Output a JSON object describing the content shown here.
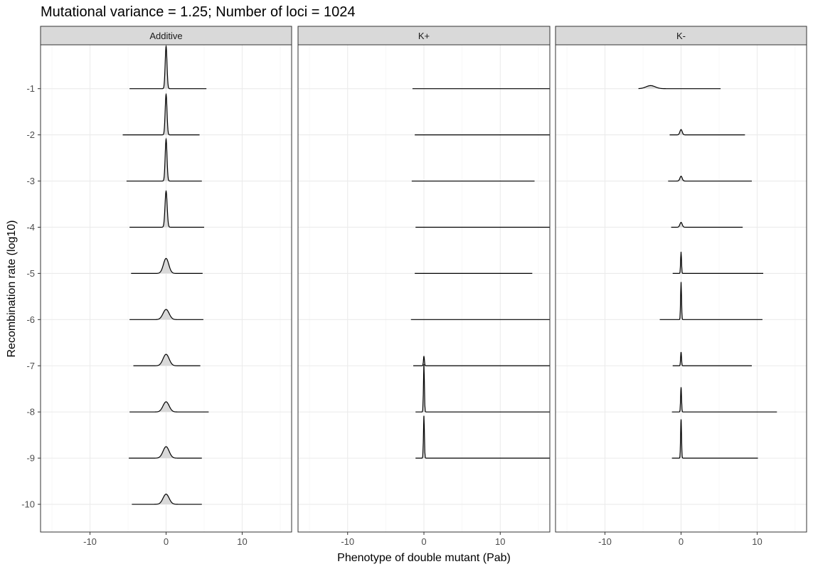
{
  "chart_data": {
    "type": "ridgeline",
    "title": "Mutational variance = 1.25; Number of loci = 1024",
    "xlabel": "Phenotype of double mutant (Pab)",
    "ylabel": "Recombination rate (log10)",
    "xlim": [
      -16.5,
      16.5
    ],
    "xticks": [
      -10,
      0,
      10
    ],
    "ylim": [
      -10.6,
      -0.05
    ],
    "yticks": [
      -1,
      -2,
      -3,
      -4,
      -5,
      -6,
      -7,
      -8,
      -9,
      -10
    ],
    "grid": true,
    "facets": [
      {
        "label": "Additive",
        "ridges": [
          {
            "y": -1,
            "xmin": -4.8,
            "xmax": 5.3,
            "peak": 0.0,
            "height": 0.96,
            "width": 0.12
          },
          {
            "y": -2,
            "xmin": -5.7,
            "xmax": 4.4,
            "peak": 0.0,
            "height": 0.92,
            "width": 0.12
          },
          {
            "y": -3,
            "xmin": -5.2,
            "xmax": 4.7,
            "peak": 0.0,
            "height": 0.95,
            "width": 0.12
          },
          {
            "y": -4,
            "xmin": -4.8,
            "xmax": 5.0,
            "peak": 0.0,
            "height": 0.82,
            "width": 0.14
          },
          {
            "y": -5,
            "xmin": -4.6,
            "xmax": 4.8,
            "peak": 0.0,
            "height": 0.34,
            "width": 0.35
          },
          {
            "y": -6,
            "xmin": -4.8,
            "xmax": 4.9,
            "peak": 0.0,
            "height": 0.23,
            "width": 0.4
          },
          {
            "y": -7,
            "xmin": -4.3,
            "xmax": 4.5,
            "peak": 0.0,
            "height": 0.26,
            "width": 0.4
          },
          {
            "y": -8,
            "xmin": -4.8,
            "xmax": 5.6,
            "peak": 0.0,
            "height": 0.23,
            "width": 0.4
          },
          {
            "y": -9,
            "xmin": -4.9,
            "xmax": 4.7,
            "peak": 0.0,
            "height": 0.26,
            "width": 0.4
          },
          {
            "y": -10,
            "xmin": -4.5,
            "xmax": 4.7,
            "peak": 0.0,
            "height": 0.23,
            "width": 0.4
          }
        ]
      },
      {
        "label": "K+",
        "ridges": [
          {
            "y": -1,
            "xmin": -1.5,
            "xmax": 16.5,
            "peak": 0.0,
            "height": 0.0,
            "width": 0.1
          },
          {
            "y": -2,
            "xmin": -1.2,
            "xmax": 16.5,
            "peak": 0.0,
            "height": 0.0,
            "width": 0.1
          },
          {
            "y": -3,
            "xmin": -1.6,
            "xmax": 14.5,
            "peak": 0.0,
            "height": 0.0,
            "width": 0.1
          },
          {
            "y": -4,
            "xmin": -1.1,
            "xmax": 16.5,
            "peak": 0.0,
            "height": 0.0,
            "width": 0.1
          },
          {
            "y": -5,
            "xmin": -1.2,
            "xmax": 14.2,
            "peak": 0.0,
            "height": 0.0,
            "width": 0.1
          },
          {
            "y": -6,
            "xmin": -1.7,
            "xmax": 16.5,
            "peak": 0.0,
            "height": 0.0,
            "width": 0.1
          },
          {
            "y": -7,
            "xmin": -1.4,
            "xmax": 16.5,
            "peak": 0.0,
            "height": 0.22,
            "width": 0.06
          },
          {
            "y": -8,
            "xmin": -1.1,
            "xmax": 16.5,
            "peak": 0.0,
            "height": 1.08,
            "width": 0.06
          },
          {
            "y": -9,
            "xmin": -1.1,
            "xmax": 16.5,
            "peak": 0.0,
            "height": 0.96,
            "width": 0.06
          }
        ]
      },
      {
        "label": "K-",
        "ridges": [
          {
            "y": -1,
            "xmin": -5.6,
            "xmax": 5.2,
            "peak": -4.0,
            "height": 0.07,
            "width": 0.6
          },
          {
            "y": -2,
            "xmin": -1.5,
            "xmax": 8.4,
            "peak": 0.0,
            "height": 0.12,
            "width": 0.15
          },
          {
            "y": -3,
            "xmin": -1.7,
            "xmax": 9.3,
            "peak": 0.0,
            "height": 0.11,
            "width": 0.15
          },
          {
            "y": -4,
            "xmin": -1.3,
            "xmax": 8.1,
            "peak": 0.0,
            "height": 0.11,
            "width": 0.15
          },
          {
            "y": -5,
            "xmin": -1.1,
            "xmax": 10.8,
            "peak": 0.0,
            "height": 0.48,
            "width": 0.06
          },
          {
            "y": -6,
            "xmin": -2.8,
            "xmax": 10.7,
            "peak": 0.0,
            "height": 0.85,
            "width": 0.06
          },
          {
            "y": -7,
            "xmin": -1.1,
            "xmax": 9.3,
            "peak": 0.0,
            "height": 0.31,
            "width": 0.06
          },
          {
            "y": -8,
            "xmin": -1.2,
            "xmax": 12.6,
            "peak": 0.0,
            "height": 0.56,
            "width": 0.06
          },
          {
            "y": -9,
            "xmin": -1.2,
            "xmax": 10.1,
            "peak": 0.0,
            "height": 0.88,
            "width": 0.06
          }
        ]
      }
    ]
  }
}
